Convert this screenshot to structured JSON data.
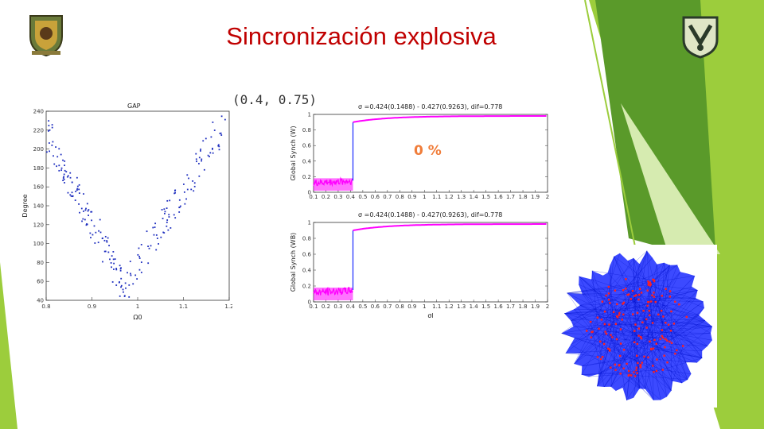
{
  "slide": {
    "title": "Sincronización explosiva",
    "interval_label": "(0.4,  0.75)",
    "percent_label": "0 %"
  },
  "logos": {
    "left": "university-crest",
    "right": "unam-crest"
  },
  "colors": {
    "title": "#c00000",
    "scatter_points": "#1f2fbf",
    "synch_curve": "#ff00ff",
    "network_edges": "#1a2aff",
    "network_nodes": "#ff2020",
    "green_dark": "#5a9a2a",
    "green_light": "#9ccd3c"
  },
  "chart_data": [
    {
      "type": "scatter",
      "title": "GAP",
      "xlabel": "Ω0",
      "ylabel": "Degree",
      "xlim": [
        0.8,
        1.2
      ],
      "ylim": [
        40,
        240
      ],
      "xticks": [
        "0.8",
        "0.9",
        "1",
        "1.1",
        "1.2"
      ],
      "yticks": [
        "40",
        "60",
        "80",
        "100",
        "120",
        "140",
        "160",
        "180",
        "200",
        "220",
        "240"
      ],
      "shape": "V",
      "vertex": [
        0.97,
        55
      ],
      "left_end": [
        0.8,
        218
      ],
      "right_end": [
        1.19,
        228
      ]
    },
    {
      "type": "line",
      "title": "σ =0.424(0.1488) - 0.427(0.9263), dif=0.778",
      "xlabel": "",
      "ylabel": "Global Synch (W)",
      "xlim": [
        0.1,
        2
      ],
      "ylim": [
        0,
        1
      ],
      "xticks": [
        "0.1",
        "0.2",
        "0.3",
        "0.4",
        "0.5",
        "0.6",
        "0.7",
        "0.8",
        "0.9",
        "1",
        "1.1",
        "1.2",
        "1.3",
        "1.4",
        "1.5",
        "1.6",
        "1.7",
        "1.8",
        "1.9",
        "2"
      ],
      "yticks": [
        "0",
        "0.2",
        "0.4",
        "0.6",
        "0.8",
        "1"
      ],
      "transition": 0.42,
      "low_level": 0.1,
      "high_level": 0.98
    },
    {
      "type": "line",
      "title": "σ =0.424(0.1488) - 0.427(0.9263), dif=0.778",
      "xlabel": "σl",
      "ylabel": "Global Synch (WB)",
      "xlim": [
        0.1,
        2
      ],
      "ylim": [
        0,
        1
      ],
      "xticks": [
        "0.1",
        "0.2",
        "0.3",
        "0.4",
        "0.5",
        "0.6",
        "0.7",
        "0.8",
        "0.9",
        "1",
        "1.1",
        "1.2",
        "1.3",
        "1.4",
        "1.5",
        "1.6",
        "1.7",
        "1.8",
        "1.9",
        "2"
      ],
      "yticks": [
        "0",
        "0.2",
        "0.4",
        "0.6",
        "0.8",
        "1"
      ],
      "transition": 0.42,
      "low_level": 0.1,
      "high_level": 0.98
    }
  ]
}
